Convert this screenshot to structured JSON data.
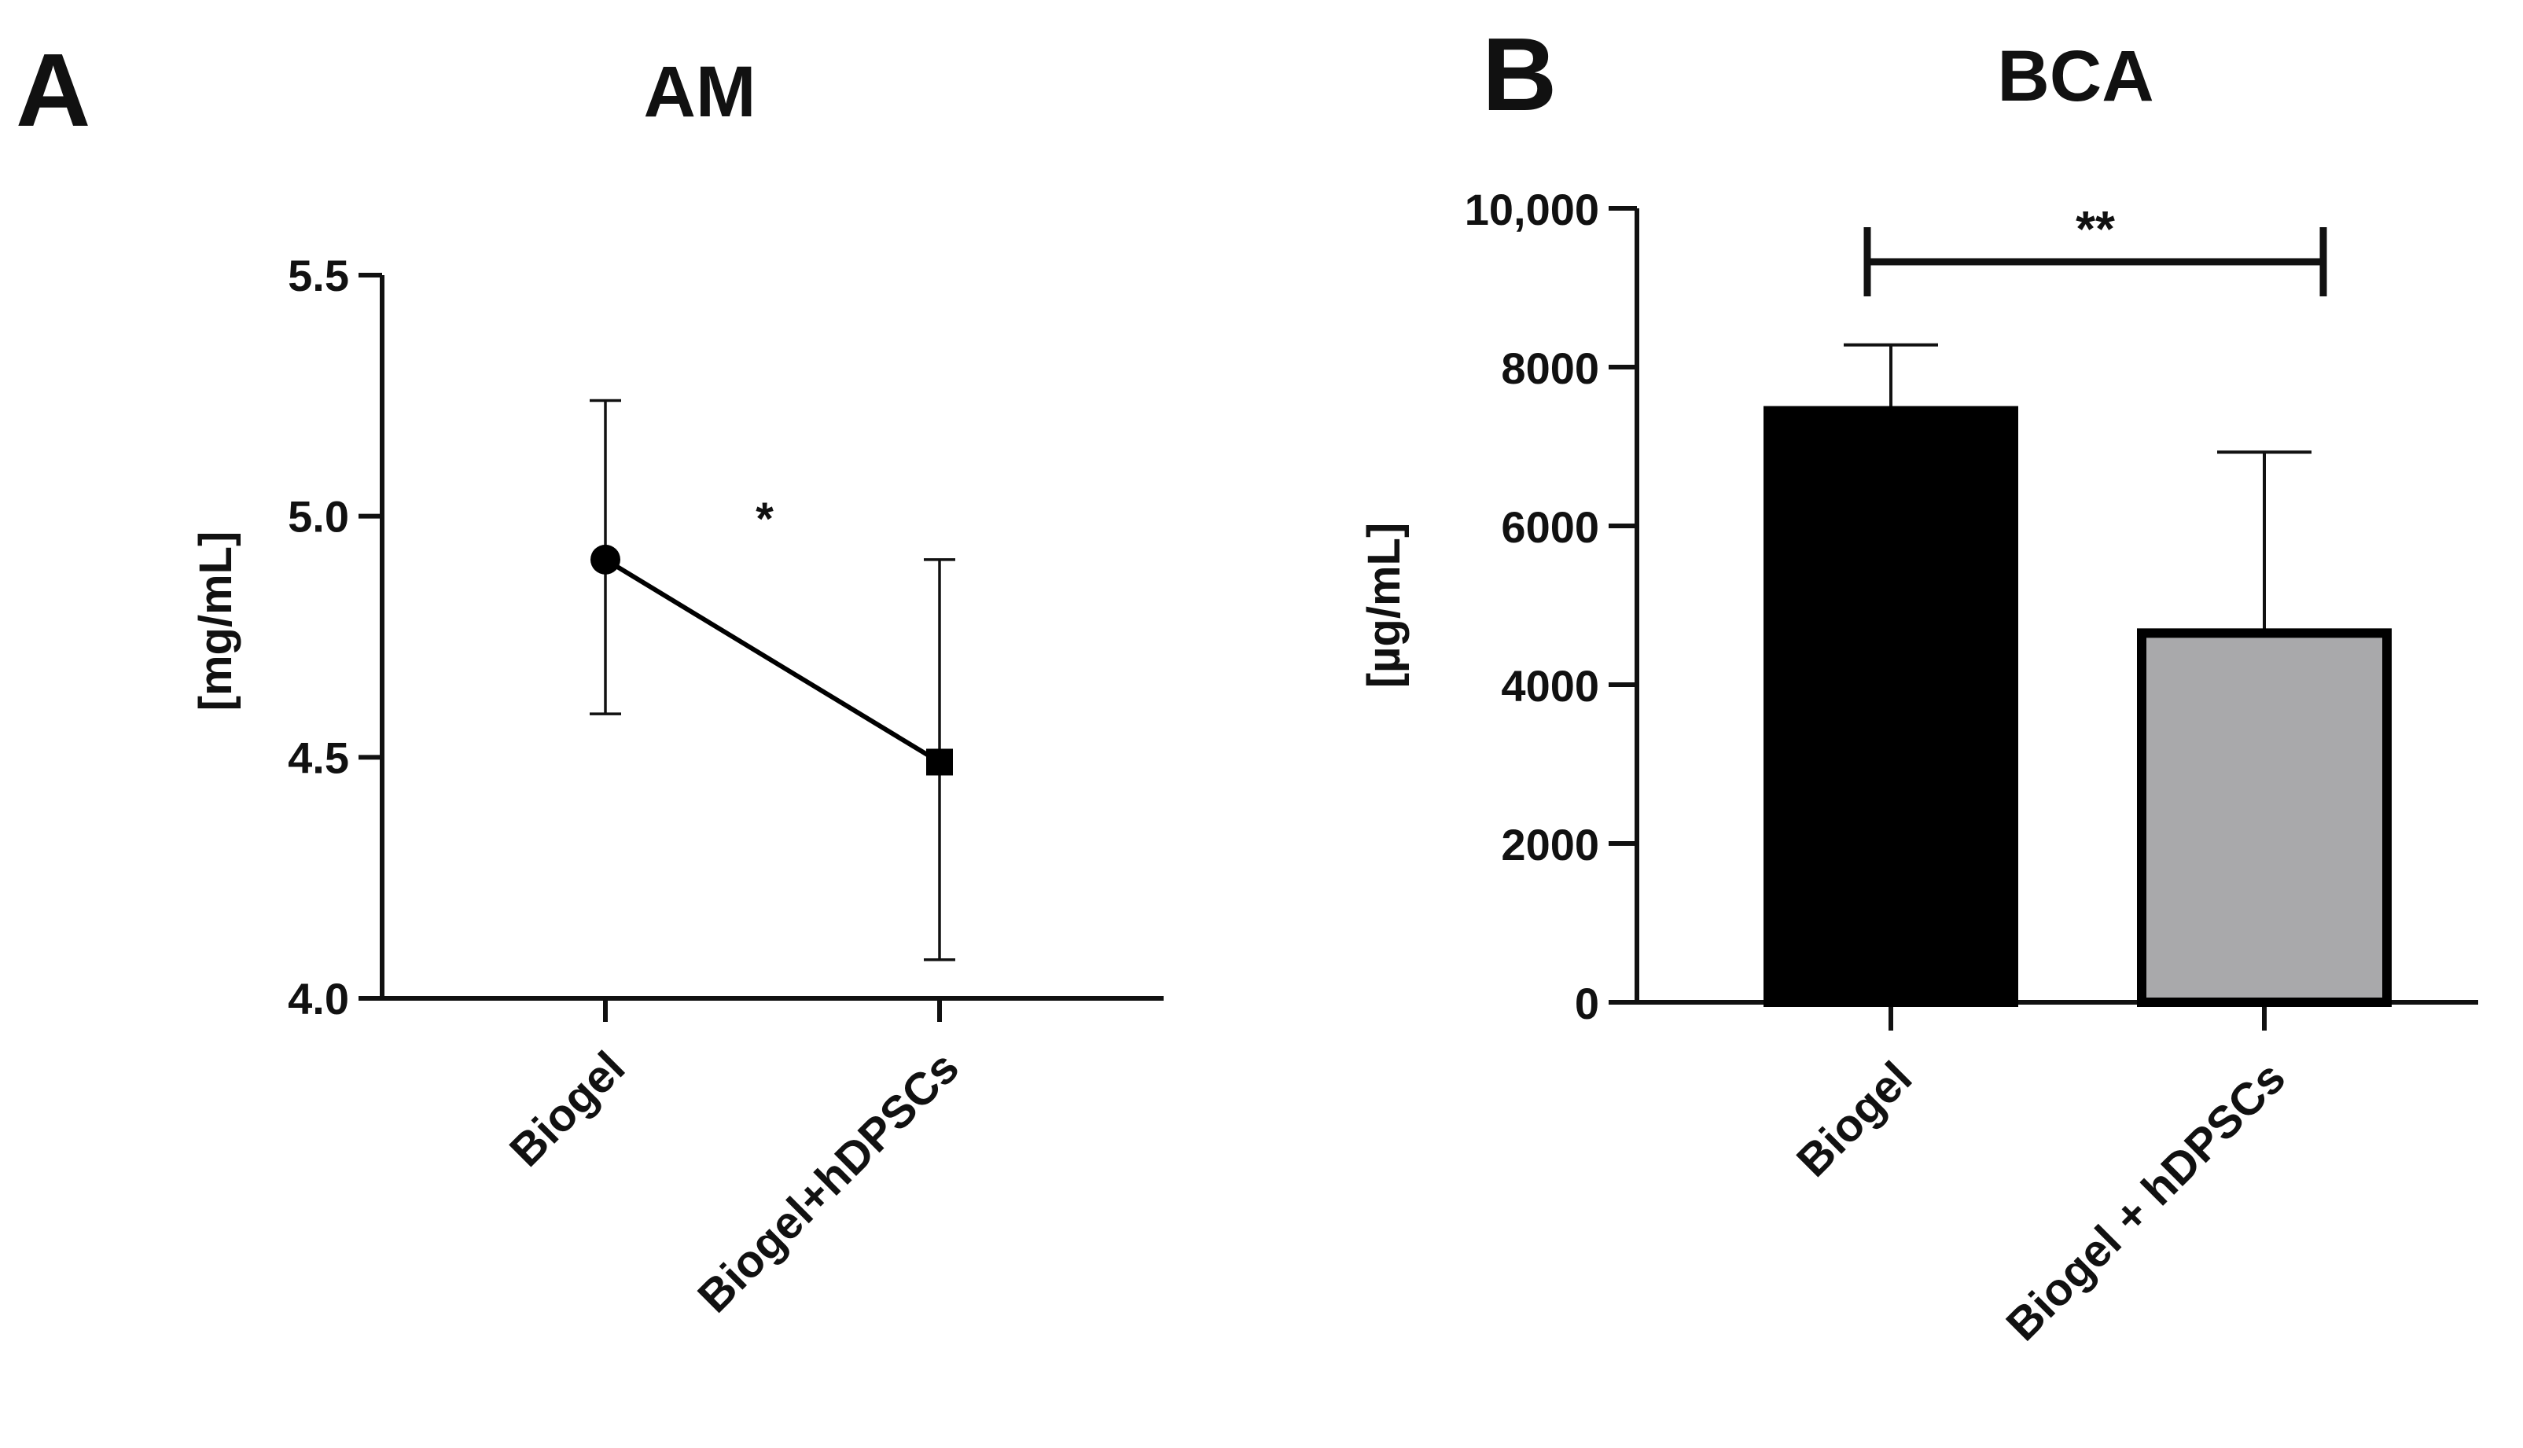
{
  "chart_data": [
    {
      "panel": "A",
      "type": "line",
      "title": "AM",
      "xlabel": "",
      "ylabel": "[mg/mL]",
      "ylim": [
        4.0,
        5.5
      ],
      "yticks": [
        4.0,
        4.5,
        5.0,
        5.5
      ],
      "ytick_labels": [
        "4.0",
        "4.5",
        "5.0",
        "5.5"
      ],
      "categories": [
        "Biogel",
        "Biogel+hDPSCs"
      ],
      "series": [
        {
          "name": "AM",
          "values": [
            4.91,
            4.49
          ],
          "error_low": [
            4.59,
            4.08
          ],
          "error_high": [
            5.24,
            4.91
          ],
          "markers": [
            "circle",
            "square"
          ],
          "color": "#000000"
        }
      ],
      "significance": {
        "between": [
          0,
          1
        ],
        "label": "*"
      },
      "grid": false
    },
    {
      "panel": "B",
      "type": "bar",
      "title": "BCA",
      "xlabel": "",
      "ylabel": "[µg/mL]",
      "ylim": [
        0,
        10000
      ],
      "yticks": [
        0,
        2000,
        4000,
        6000,
        8000,
        10000
      ],
      "ytick_labels": [
        "0",
        "2000",
        "4000",
        "6000",
        "8000",
        "10,000"
      ],
      "categories": [
        "Biogel",
        "Biogel + hDPSCs"
      ],
      "series": [
        {
          "name": "BCA",
          "values": [
            7450,
            4650
          ],
          "error_high": [
            8280,
            6930
          ],
          "colors": [
            "#000000",
            "#a9a9ab"
          ]
        }
      ],
      "significance": {
        "between": [
          0,
          1
        ],
        "label": "**"
      },
      "grid": false
    }
  ]
}
